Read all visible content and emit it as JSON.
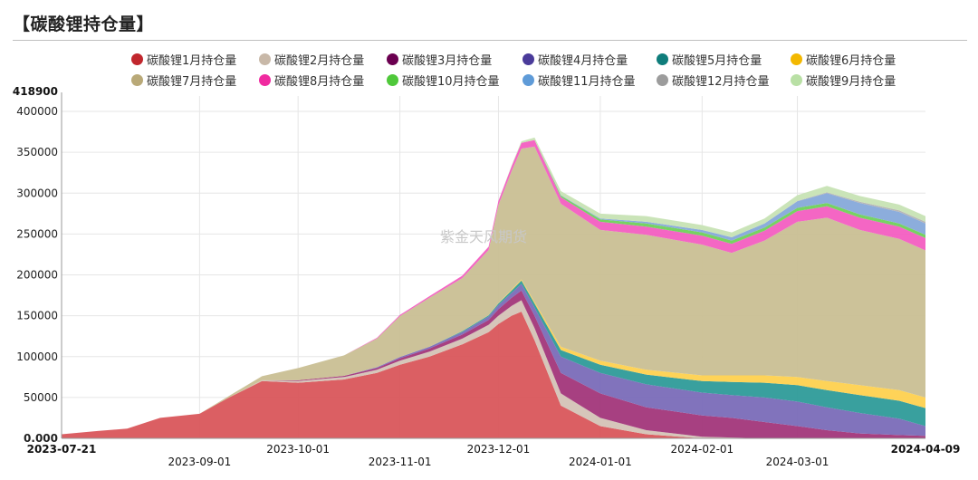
{
  "header": {
    "title": "【碳酸锂持仓量】"
  },
  "watermark": "紫金天风期货",
  "chart_data": {
    "type": "area",
    "stacked": true,
    "title": "",
    "xlabel": "",
    "ylabel": "",
    "ylim": [
      0,
      418900
    ],
    "y_top_label": "418900",
    "y_ticks": [
      {
        "value": 400000,
        "label": "400000"
      },
      {
        "value": 350000,
        "label": "350000"
      },
      {
        "value": 300000,
        "label": "300000"
      },
      {
        "value": 250000,
        "label": "250000"
      },
      {
        "value": 200000,
        "label": "200000"
      },
      {
        "value": 150000,
        "label": "150000"
      },
      {
        "value": 100000,
        "label": "100000"
      },
      {
        "value": 50000,
        "label": "50000"
      },
      {
        "value": 0,
        "label": "0.000"
      }
    ],
    "xlim": [
      "2023-07-21",
      "2024-04-09"
    ],
    "x_ticks": [
      {
        "date": "2023-07-21",
        "label": "2023-07-21",
        "row": 0,
        "bold": true
      },
      {
        "date": "2023-09-01",
        "label": "2023-09-01",
        "row": 1,
        "bold": false
      },
      {
        "date": "2023-10-01",
        "label": "2023-10-01",
        "row": 0,
        "bold": false
      },
      {
        "date": "2023-11-01",
        "label": "2023-11-01",
        "row": 1,
        "bold": false
      },
      {
        "date": "2023-12-01",
        "label": "2023-12-01",
        "row": 0,
        "bold": false
      },
      {
        "date": "2024-01-01",
        "label": "2024-01-01",
        "row": 1,
        "bold": false
      },
      {
        "date": "2024-02-01",
        "label": "2024-02-01",
        "row": 0,
        "bold": false
      },
      {
        "date": "2024-03-01",
        "label": "2024-03-01",
        "row": 1,
        "bold": false
      },
      {
        "date": "2024-04-09",
        "label": "2024-04-09",
        "row": 0,
        "bold": true
      }
    ],
    "grid": true,
    "legend_position": "top",
    "x": [
      "2023-07-21",
      "2023-08-01",
      "2023-08-10",
      "2023-08-20",
      "2023-09-01",
      "2023-09-10",
      "2023-09-20",
      "2023-10-01",
      "2023-10-15",
      "2023-10-25",
      "2023-11-01",
      "2023-11-10",
      "2023-11-20",
      "2023-11-28",
      "2023-12-01",
      "2023-12-05",
      "2023-12-08",
      "2023-12-12",
      "2023-12-20",
      "2024-01-01",
      "2024-01-15",
      "2024-02-01",
      "2024-02-10",
      "2024-02-20",
      "2024-03-01",
      "2024-03-10",
      "2024-03-20",
      "2024-04-01",
      "2024-04-09"
    ],
    "series": [
      {
        "name": "碳酸锂1月持仓量",
        "color": "#d9565b",
        "values": [
          5000,
          9000,
          12000,
          25000,
          30000,
          50000,
          70000,
          68000,
          72000,
          80000,
          90000,
          100000,
          115000,
          130000,
          140000,
          150000,
          155000,
          120000,
          40000,
          15000,
          5000,
          0,
          0,
          0,
          0,
          0,
          0,
          0,
          0
        ]
      },
      {
        "name": "碳酸锂2月持仓量",
        "color": "#d4c3b6",
        "values": [
          0,
          0,
          0,
          0,
          0,
          0,
          1000,
          2000,
          3000,
          4000,
          5000,
          6000,
          7000,
          9000,
          10000,
          12000,
          14000,
          15000,
          15000,
          10000,
          5000,
          2000,
          1000,
          0,
          0,
          0,
          0,
          0,
          0
        ]
      },
      {
        "name": "碳酸锂3月持仓量",
        "color": "#a2367a",
        "values": [
          0,
          0,
          0,
          0,
          0,
          0,
          0,
          1000,
          1500,
          2000,
          3000,
          4000,
          5000,
          6000,
          8000,
          10000,
          12000,
          15000,
          25000,
          30000,
          28000,
          26000,
          24000,
          20000,
          15000,
          10000,
          6000,
          4000,
          3000
        ]
      },
      {
        "name": "碳酸锂4月持仓量",
        "color": "#7a6bb8",
        "values": [
          0,
          0,
          0,
          0,
          0,
          0,
          0,
          0,
          0,
          1000,
          1500,
          2000,
          3000,
          4000,
          5000,
          6000,
          8000,
          10000,
          20000,
          25000,
          28000,
          28000,
          28000,
          30000,
          30000,
          28000,
          25000,
          20000,
          12000
        ]
      },
      {
        "name": "碳酸锂5月持仓量",
        "color": "#2e9b99",
        "values": [
          0,
          0,
          0,
          0,
          0,
          0,
          0,
          0,
          0,
          0,
          0,
          0,
          1000,
          1500,
          2000,
          3000,
          4000,
          5000,
          8000,
          10000,
          12000,
          14000,
          16000,
          18000,
          20000,
          21000,
          22000,
          22000,
          22000
        ]
      },
      {
        "name": "碳酸锂6月持仓量",
        "color": "#fed14f",
        "values": [
          0,
          0,
          0,
          0,
          0,
          0,
          0,
          0,
          0,
          0,
          0,
          0,
          0,
          0,
          500,
          1000,
          1500,
          2000,
          4000,
          5000,
          6000,
          7000,
          8000,
          9000,
          10000,
          11000,
          12000,
          13000,
          13000
        ]
      },
      {
        "name": "碳酸锂7月持仓量",
        "color": "#c9bf94",
        "values": [
          0,
          0,
          0,
          0,
          0,
          2000,
          5000,
          15000,
          25000,
          35000,
          50000,
          60000,
          65000,
          80000,
          120000,
          145000,
          160000,
          190000,
          175000,
          160000,
          165000,
          160000,
          150000,
          165000,
          190000,
          200000,
          190000,
          185000,
          180000
        ]
      },
      {
        "name": "碳酸锂8月持仓量",
        "color": "#f35ec1",
        "values": [
          0,
          0,
          0,
          0,
          0,
          0,
          0,
          0,
          0,
          1000,
          1500,
          2000,
          3000,
          4000,
          5000,
          6000,
          7000,
          8000,
          8000,
          10000,
          10000,
          11000,
          11000,
          12000,
          13000,
          14000,
          15000,
          15000,
          15000
        ]
      },
      {
        "name": "碳酸锂10月持仓量",
        "color": "#6fd15a",
        "values": [
          0,
          0,
          0,
          0,
          0,
          0,
          0,
          0,
          0,
          0,
          0,
          0,
          0,
          0,
          0,
          0,
          0,
          0,
          2000,
          3000,
          4000,
          4000,
          4000,
          4000,
          4000,
          4000,
          4000,
          4000,
          4000
        ]
      },
      {
        "name": "碳酸锂11月持仓量",
        "color": "#86a9da",
        "values": [
          0,
          0,
          0,
          0,
          0,
          0,
          0,
          0,
          0,
          0,
          0,
          0,
          0,
          0,
          0,
          0,
          0,
          0,
          500,
          1000,
          2000,
          3000,
          4000,
          5000,
          8000,
          12000,
          14000,
          14000,
          14000
        ]
      },
      {
        "name": "碳酸锂12月持仓量",
        "color": "#b3b3b3",
        "values": [
          0,
          0,
          0,
          0,
          0,
          0,
          0,
          0,
          0,
          0,
          0,
          0,
          0,
          0,
          0,
          0,
          0,
          0,
          0,
          0,
          0,
          0,
          0,
          0,
          500,
          1000,
          1500,
          2000,
          2000
        ]
      },
      {
        "name": "碳酸锂9月持仓量",
        "color": "#c7e3b4",
        "values": [
          0,
          0,
          0,
          0,
          0,
          0,
          0,
          0,
          0,
          0,
          0,
          0,
          0,
          0,
          0,
          1000,
          2000,
          3000,
          5000,
          6000,
          7000,
          6000,
          6000,
          6000,
          7000,
          8000,
          7000,
          7000,
          7000
        ]
      }
    ],
    "legend_order": [
      {
        "name": "碳酸锂1月持仓量",
        "color": "#c1272d"
      },
      {
        "name": "碳酸锂2月持仓量",
        "color": "#c8b8a8"
      },
      {
        "name": "碳酸锂3月持仓量",
        "color": "#6b0050"
      },
      {
        "name": "碳酸锂4月持仓量",
        "color": "#4a3b9a"
      },
      {
        "name": "碳酸锂5月持仓量",
        "color": "#0f7d7b"
      },
      {
        "name": "碳酸锂6月持仓量",
        "color": "#f3b800"
      },
      {
        "name": "碳酸锂7月持仓量",
        "color": "#b9a978"
      },
      {
        "name": "碳酸锂8月持仓量",
        "color": "#f02aa0"
      },
      {
        "name": "碳酸锂10月持仓量",
        "color": "#4fc83a"
      },
      {
        "name": "碳酸锂11月持仓量",
        "color": "#5f9bd8"
      },
      {
        "name": "碳酸锂12月持仓量",
        "color": "#9c9c9c"
      },
      {
        "name": "碳酸锂9月持仓量",
        "color": "#b9e0a5"
      }
    ]
  }
}
